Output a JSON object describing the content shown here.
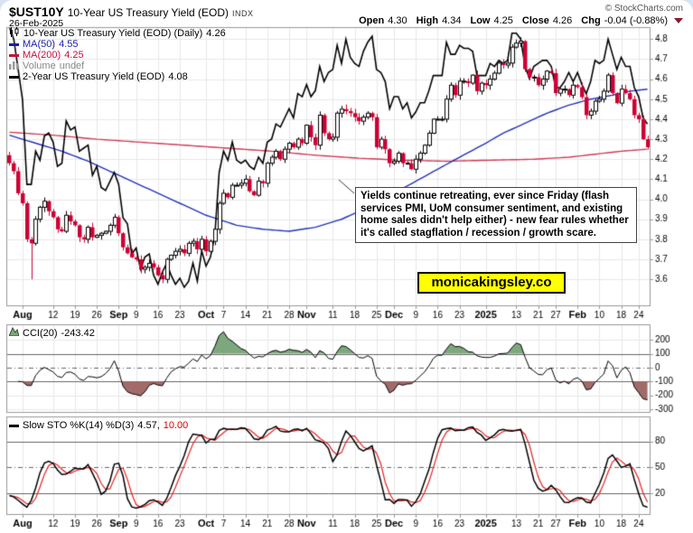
{
  "header": {
    "symbol": "$UST10Y",
    "title": "10-Year US Treasury Yield (EOD)",
    "exchange": "INDX",
    "date": "26-Feb-2025",
    "copyright": "© StockCharts.com",
    "quote": {
      "open_l": "Open",
      "open_v": "4.30",
      "high_l": "High",
      "high_v": "4.34",
      "low_l": "Low",
      "low_v": "4.25",
      "close_l": "Close",
      "close_v": "4.26",
      "chg_l": "Chg",
      "chg_v": "-0.04 (-0.88%)"
    }
  },
  "legend": {
    "rows": [
      {
        "label": "10-Year US Treasury Yield (EOD) (Daily)",
        "value": "4.26"
      },
      {
        "label": "MA(50)",
        "value": "4.55"
      },
      {
        "label": "MA(200)",
        "value": "4.25"
      },
      {
        "label": "Volume",
        "value": "undef"
      },
      {
        "label": "2-Year US Treasury Yield (EOD)",
        "value": "4.08"
      }
    ]
  },
  "cci_legend": {
    "label": "CCI(20)",
    "value": "-243.42"
  },
  "sto_legend": {
    "label": "Slow STO %K(14) %D(3)",
    "k": "4.57,",
    "d": "10.00"
  },
  "annotation": {
    "text": "Yields continue retreating, ever since Friday (flash services PMI, UoM consumer sentiment, and existing home sales didn't help either) - new fear rules whether it's called stagflation / recession / growth scare.",
    "link": "monicakingsley.co"
  },
  "colors": {
    "candle_up_fill": "#ffffff",
    "candle_up_stroke": "#000000",
    "candle_down": "#cc0033",
    "ma50": "#2233bb",
    "ma200": "#d03a55",
    "line_2y": "#000000",
    "cci_line": "#000000",
    "cci_pos_fill": "#7da87d",
    "cci_neg_fill": "#a36a6a",
    "sto_k": "#000000",
    "sto_d": "#e82222",
    "grid": "#e7e7e7",
    "panel_border": "#999999",
    "threshold": "#666666",
    "link_bg": "#ffff00",
    "chg_triangle": "#8b1a2f"
  },
  "chart_data": {
    "type": "candlestick",
    "bars": 147,
    "x_ticks": [
      {
        "i": 3,
        "l": "Aug",
        "b": 1
      },
      {
        "i": 10,
        "l": "12"
      },
      {
        "i": 15,
        "l": "19"
      },
      {
        "i": 20,
        "l": "26"
      },
      {
        "i": 25,
        "l": "Sep",
        "b": 1
      },
      {
        "i": 29,
        "l": "9"
      },
      {
        "i": 34,
        "l": "16"
      },
      {
        "i": 39,
        "l": "23"
      },
      {
        "i": 45,
        "l": "Oct",
        "b": 1
      },
      {
        "i": 49,
        "l": "7"
      },
      {
        "i": 54,
        "l": "14"
      },
      {
        "i": 59,
        "l": "21"
      },
      {
        "i": 64,
        "l": "28"
      },
      {
        "i": 68,
        "l": "Nov",
        "b": 1
      },
      {
        "i": 74,
        "l": "11"
      },
      {
        "i": 79,
        "l": "18"
      },
      {
        "i": 84,
        "l": "25"
      },
      {
        "i": 88,
        "l": "Dec",
        "b": 1
      },
      {
        "i": 93,
        "l": "9"
      },
      {
        "i": 98,
        "l": "16"
      },
      {
        "i": 103,
        "l": "23"
      },
      {
        "i": 109,
        "l": "2025",
        "b": 1
      },
      {
        "i": 116,
        "l": "13"
      },
      {
        "i": 121,
        "l": "21"
      },
      {
        "i": 125,
        "l": "27"
      },
      {
        "i": 130,
        "l": "Feb",
        "b": 1
      },
      {
        "i": 135,
        "l": "10"
      },
      {
        "i": 140,
        "l": "18"
      },
      {
        "i": 144,
        "l": "24"
      }
    ],
    "main": {
      "ylim": [
        3.47,
        4.86
      ],
      "yticks": [
        3.6,
        3.7,
        3.8,
        3.9,
        4.0,
        4.1,
        4.2,
        4.3,
        4.4,
        4.5,
        4.6,
        4.7,
        4.8
      ],
      "last_close": 4.26,
      "close_10y": [
        4.18,
        4.14,
        4.03,
        3.98,
        3.8,
        3.78,
        3.9,
        3.96,
        3.99,
        3.94,
        3.91,
        3.85,
        3.84,
        3.92,
        3.89,
        3.87,
        3.81,
        3.8,
        3.86,
        3.81,
        3.82,
        3.83,
        3.84,
        3.87,
        3.91,
        3.83,
        3.76,
        3.73,
        3.71,
        3.7,
        3.65,
        3.66,
        3.68,
        3.66,
        3.62,
        3.6,
        3.7,
        3.72,
        3.74,
        3.75,
        3.73,
        3.78,
        3.79,
        3.75,
        3.8,
        3.74,
        3.79,
        3.85,
        3.98,
        4.03,
        4.01,
        4.07,
        4.07,
        4.08,
        4.1,
        4.04,
        4.02,
        4.09,
        4.08,
        4.18,
        4.21,
        4.24,
        4.2,
        4.25,
        4.28,
        4.26,
        4.3,
        4.28,
        4.37,
        4.31,
        4.27,
        4.42,
        4.33,
        4.3,
        4.31,
        4.43,
        4.45,
        4.44,
        4.43,
        4.41,
        4.39,
        4.41,
        4.43,
        4.41,
        4.26,
        4.3,
        4.25,
        4.18,
        4.19,
        4.23,
        4.18,
        4.18,
        4.15,
        4.2,
        4.23,
        4.27,
        4.33,
        4.4,
        4.4,
        4.4,
        4.5,
        4.57,
        4.52,
        4.59,
        4.59,
        4.58,
        4.62,
        4.54,
        4.58,
        4.57,
        4.6,
        4.63,
        4.68,
        4.67,
        4.68,
        4.76,
        4.78,
        4.79,
        4.65,
        4.61,
        4.61,
        4.57,
        4.6,
        4.64,
        4.63,
        4.53,
        4.55,
        4.55,
        4.52,
        4.57,
        4.56,
        4.51,
        4.42,
        4.44,
        4.49,
        4.5,
        4.54,
        4.62,
        4.53,
        4.48,
        4.55,
        4.53,
        4.5,
        4.42,
        4.4,
        4.3,
        4.26
      ],
      "wick_low_overrides": {
        "5": 3.6
      },
      "ma50_last": 4.55,
      "ma50_keypoints": [
        [
          0,
          4.32
        ],
        [
          6,
          4.28
        ],
        [
          12,
          4.24
        ],
        [
          18,
          4.19
        ],
        [
          25,
          4.12
        ],
        [
          31,
          4.06
        ],
        [
          38,
          3.99
        ],
        [
          45,
          3.92
        ],
        [
          52,
          3.87
        ],
        [
          58,
          3.85
        ],
        [
          64,
          3.84
        ],
        [
          70,
          3.86
        ],
        [
          76,
          3.9
        ],
        [
          82,
          3.96
        ],
        [
          88,
          4.03
        ],
        [
          93,
          4.09
        ],
        [
          98,
          4.15
        ],
        [
          103,
          4.21
        ],
        [
          109,
          4.28
        ],
        [
          113,
          4.33
        ],
        [
          118,
          4.38
        ],
        [
          123,
          4.43
        ],
        [
          128,
          4.47
        ],
        [
          133,
          4.5
        ],
        [
          138,
          4.52
        ],
        [
          142,
          4.54
        ],
        [
          146,
          4.55
        ]
      ],
      "ma200_last": 4.25,
      "ma200_keypoints": [
        [
          0,
          4.335
        ],
        [
          10,
          4.32
        ],
        [
          20,
          4.3
        ],
        [
          30,
          4.285
        ],
        [
          40,
          4.27
        ],
        [
          50,
          4.255
        ],
        [
          60,
          4.24
        ],
        [
          70,
          4.22
        ],
        [
          80,
          4.205
        ],
        [
          90,
          4.195
        ],
        [
          100,
          4.19
        ],
        [
          110,
          4.195
        ],
        [
          120,
          4.2
        ],
        [
          128,
          4.21
        ],
        [
          134,
          4.225
        ],
        [
          140,
          4.24
        ],
        [
          146,
          4.25
        ]
      ],
      "last_2y": 4.08,
      "overlay_2y_scale": {
        "from": [
          3.54,
          4.4
        ],
        "to": [
          3.56,
          4.86
        ]
      },
      "close_2y": [
        4.4,
        4.36,
        4.26,
        4.16,
        3.88,
        3.88,
        3.99,
        3.96,
        4.04,
        4.05,
        4.02,
        3.94,
        3.95,
        4.09,
        4.06,
        4.07,
        3.99,
        4.0,
        4.01,
        3.91,
        3.94,
        3.87,
        3.86,
        3.89,
        3.92,
        3.88,
        3.77,
        3.75,
        3.65,
        3.67,
        3.6,
        3.64,
        3.65,
        3.58,
        3.55,
        3.59,
        3.62,
        3.58,
        3.55,
        3.57,
        3.54,
        3.56,
        3.62,
        3.56,
        3.66,
        3.61,
        3.64,
        3.71,
        3.92,
        3.99,
        3.96,
        4.02,
        3.96,
        3.95,
        3.96,
        3.94,
        3.93,
        3.97,
        3.95,
        4.02,
        4.03,
        4.08,
        4.07,
        4.1,
        4.13,
        4.1,
        4.18,
        4.17,
        4.21,
        4.17,
        4.19,
        4.27,
        4.22,
        4.25,
        4.26,
        4.34,
        4.28,
        4.36,
        4.3,
        4.28,
        4.27,
        4.32,
        4.35,
        4.37,
        4.26,
        4.25,
        4.22,
        4.13,
        4.17,
        4.17,
        4.13,
        4.15,
        4.1,
        4.12,
        4.15,
        4.15,
        4.19,
        4.24,
        4.24,
        4.24,
        4.35,
        4.31,
        4.31,
        4.34,
        4.33,
        4.33,
        4.32,
        4.24,
        4.24,
        4.24,
        4.28,
        4.27,
        4.29,
        4.28,
        4.29,
        4.38,
        4.38,
        4.36,
        4.27,
        4.23,
        4.27,
        4.28,
        4.29,
        4.29,
        4.27,
        4.2,
        4.2,
        4.22,
        4.25,
        4.22,
        4.25,
        4.21,
        4.18,
        4.22,
        4.29,
        4.28,
        4.29,
        4.36,
        4.31,
        4.26,
        4.3,
        4.27,
        4.27,
        4.2,
        4.17,
        4.1,
        4.08
      ]
    },
    "cci": {
      "label": "CCI(20)",
      "period": 20,
      "last": -243.42,
      "ylim": [
        -320,
        312
      ],
      "yticks": [
        200,
        100,
        0,
        -100,
        -200,
        -300
      ],
      "upper_band": 100,
      "lower_band": -100,
      "zero_line": 0,
      "derived_from_price": true
    },
    "sto": {
      "label": "Slow STO %K(14) %D(3)",
      "k_period": 14,
      "d_period": 3,
      "k_last": 4.57,
      "d_last": 10.0,
      "ylim": [
        -4,
        109
      ],
      "yticks": [
        80,
        50,
        20
      ],
      "upper_band": 80,
      "mid_line": 50,
      "lower_band": 20,
      "derived_from_price": true
    }
  }
}
